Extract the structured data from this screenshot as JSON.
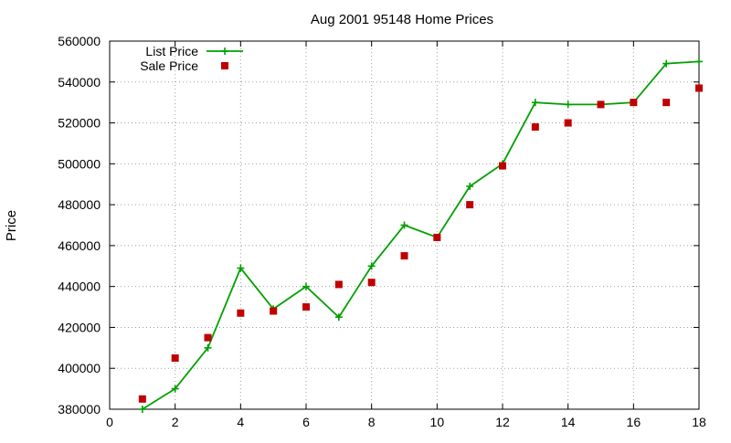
{
  "chart_data": {
    "type": "line",
    "title": "Aug 2001 95148 Home Prices",
    "xlabel": "",
    "ylabel": "Price",
    "xlim": [
      0,
      18
    ],
    "ylim": [
      380000,
      560000
    ],
    "xticks": [
      0,
      2,
      4,
      6,
      8,
      10,
      12,
      14,
      16,
      18
    ],
    "yticks": [
      380000,
      400000,
      420000,
      440000,
      460000,
      480000,
      500000,
      520000,
      540000,
      560000
    ],
    "grid": true,
    "legend_position": "top-left",
    "series": [
      {
        "name": "List Price",
        "style": "line-with-plus-markers",
        "color": "#00a000",
        "x": [
          1,
          2,
          3,
          4,
          5,
          6,
          7,
          8,
          9,
          10,
          11,
          12,
          13,
          14,
          15,
          16,
          17,
          18
        ],
        "values": [
          380000,
          390000,
          410000,
          449000,
          429000,
          440000,
          425000,
          450000,
          470000,
          464000,
          489000,
          500000,
          530000,
          529000,
          529000,
          530000,
          549000,
          550000
        ]
      },
      {
        "name": "Sale Price",
        "style": "square-markers",
        "color": "#c00000",
        "x": [
          1,
          2,
          3,
          4,
          5,
          6,
          7,
          8,
          9,
          10,
          11,
          12,
          13,
          14,
          15,
          16,
          17,
          18
        ],
        "values": [
          385000,
          405000,
          415000,
          427000,
          428000,
          430000,
          441000,
          442000,
          455000,
          464000,
          480000,
          499000,
          518000,
          520000,
          529000,
          530000,
          530000,
          537000
        ]
      }
    ]
  }
}
